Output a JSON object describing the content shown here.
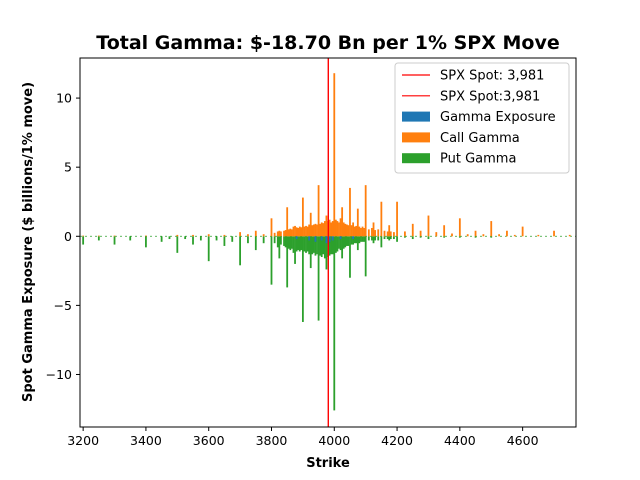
{
  "chart_data": {
    "type": "bar",
    "title": "Total Gamma: $-18.70 Bn per 1% SPX Move",
    "xlabel": "Strike",
    "ylabel": "Spot Gamma Exposure ($ billions/1% move)",
    "xlim": [
      3190,
      4770
    ],
    "ylim": [
      -13.8,
      12.9
    ],
    "xticks": [
      3200,
      3400,
      3600,
      3800,
      4000,
      4200,
      4400,
      4600
    ],
    "yticks": [
      -10,
      -5,
      0,
      5,
      10
    ],
    "spot_lines": [
      {
        "label": "SPX Spot: 3,981",
        "x": 3981,
        "color": "#ff0000"
      },
      {
        "label": "SPX Spot:3,981",
        "x": 3981,
        "color": "#ff0000"
      }
    ],
    "legend_position": "upper right",
    "series": [
      {
        "name": "Gamma Exposure",
        "color": "#1f77b4",
        "values": [
          [
            3880,
            -0.2
          ],
          [
            3920,
            -0.3
          ],
          [
            3940,
            -0.4
          ],
          [
            3960,
            -0.3
          ],
          [
            3975,
            -0.5
          ],
          [
            3985,
            -0.4
          ],
          [
            3995,
            -0.3
          ],
          [
            4020,
            -0.2
          ],
          [
            4060,
            -0.2
          ]
        ]
      },
      {
        "name": "Call Gamma",
        "color": "#ff7f0e",
        "values": [
          [
            3200,
            0.05
          ],
          [
            3250,
            0.05
          ],
          [
            3300,
            0.05
          ],
          [
            3400,
            0.05
          ],
          [
            3500,
            0.1
          ],
          [
            3550,
            0.1
          ],
          [
            3600,
            0.15
          ],
          [
            3650,
            0.1
          ],
          [
            3700,
            0.3
          ],
          [
            3725,
            0.15
          ],
          [
            3750,
            0.4
          ],
          [
            3775,
            0.15
          ],
          [
            3800,
            1.3
          ],
          [
            3810,
            0.25
          ],
          [
            3820,
            0.35
          ],
          [
            3825,
            0.4
          ],
          [
            3830,
            0.35
          ],
          [
            3840,
            0.4
          ],
          [
            3845,
            0.45
          ],
          [
            3850,
            2.1
          ],
          [
            3855,
            0.5
          ],
          [
            3860,
            0.55
          ],
          [
            3865,
            0.5
          ],
          [
            3870,
            0.7
          ],
          [
            3875,
            0.75
          ],
          [
            3880,
            0.65
          ],
          [
            3885,
            0.6
          ],
          [
            3890,
            0.7
          ],
          [
            3895,
            0.65
          ],
          [
            3900,
            2.8
          ],
          [
            3905,
            0.7
          ],
          [
            3910,
            0.75
          ],
          [
            3915,
            0.7
          ],
          [
            3920,
            0.85
          ],
          [
            3925,
            1.7
          ],
          [
            3930,
            0.8
          ],
          [
            3935,
            0.85
          ],
          [
            3940,
            0.9
          ],
          [
            3945,
            0.85
          ],
          [
            3950,
            3.7
          ],
          [
            3955,
            0.9
          ],
          [
            3960,
            1.0
          ],
          [
            3965,
            0.95
          ],
          [
            3970,
            1.1
          ],
          [
            3975,
            1.5
          ],
          [
            3980,
            1.1
          ],
          [
            3985,
            1.2
          ],
          [
            3990,
            1.0
          ],
          [
            3995,
            1.1
          ],
          [
            4000,
            11.8
          ],
          [
            4005,
            1.2
          ],
          [
            4010,
            1.1
          ],
          [
            4015,
            1.0
          ],
          [
            4020,
            1.3
          ],
          [
            4025,
            2.1
          ],
          [
            4030,
            1.0
          ],
          [
            4035,
            0.9
          ],
          [
            4040,
            0.85
          ],
          [
            4045,
            0.8
          ],
          [
            4050,
            3.5
          ],
          [
            4055,
            0.8
          ],
          [
            4060,
            1.0
          ],
          [
            4065,
            0.7
          ],
          [
            4070,
            0.75
          ],
          [
            4075,
            2.0
          ],
          [
            4080,
            0.7
          ],
          [
            4085,
            0.6
          ],
          [
            4090,
            0.7
          ],
          [
            4095,
            0.6
          ],
          [
            4100,
            3.7
          ],
          [
            4110,
            0.5
          ],
          [
            4120,
            0.6
          ],
          [
            4125,
            1.0
          ],
          [
            4130,
            0.45
          ],
          [
            4140,
            0.5
          ],
          [
            4150,
            2.5
          ],
          [
            4160,
            0.4
          ],
          [
            4170,
            0.35
          ],
          [
            4175,
            0.8
          ],
          [
            4180,
            0.35
          ],
          [
            4190,
            0.3
          ],
          [
            4200,
            2.5
          ],
          [
            4225,
            0.35
          ],
          [
            4250,
            0.9
          ],
          [
            4275,
            0.4
          ],
          [
            4300,
            1.5
          ],
          [
            4325,
            0.3
          ],
          [
            4350,
            0.8
          ],
          [
            4375,
            0.2
          ],
          [
            4400,
            1.3
          ],
          [
            4425,
            0.15
          ],
          [
            4450,
            0.4
          ],
          [
            4475,
            0.15
          ],
          [
            4500,
            1.1
          ],
          [
            4525,
            0.15
          ],
          [
            4550,
            0.4
          ],
          [
            4575,
            0.1
          ],
          [
            4600,
            0.7
          ],
          [
            4650,
            0.1
          ],
          [
            4700,
            0.4
          ],
          [
            4750,
            0.1
          ]
        ]
      },
      {
        "name": "Put Gamma",
        "color": "#2ca02c",
        "values": [
          [
            3200,
            -0.6
          ],
          [
            3250,
            -0.3
          ],
          [
            3300,
            -0.6
          ],
          [
            3350,
            -0.3
          ],
          [
            3400,
            -0.8
          ],
          [
            3450,
            -0.4
          ],
          [
            3475,
            -0.2
          ],
          [
            3500,
            -1.2
          ],
          [
            3525,
            -0.2
          ],
          [
            3550,
            -0.6
          ],
          [
            3575,
            -0.3
          ],
          [
            3600,
            -1.8
          ],
          [
            3625,
            -0.3
          ],
          [
            3650,
            -0.7
          ],
          [
            3675,
            -0.4
          ],
          [
            3700,
            -2.1
          ],
          [
            3725,
            -0.5
          ],
          [
            3750,
            -1.0
          ],
          [
            3775,
            -0.5
          ],
          [
            3800,
            -3.5
          ],
          [
            3810,
            -0.5
          ],
          [
            3820,
            -0.8
          ],
          [
            3825,
            -1.6
          ],
          [
            3830,
            -0.6
          ],
          [
            3840,
            -0.7
          ],
          [
            3845,
            -0.8
          ],
          [
            3850,
            -3.7
          ],
          [
            3855,
            -0.9
          ],
          [
            3860,
            -1.0
          ],
          [
            3865,
            -0.9
          ],
          [
            3870,
            -1.2
          ],
          [
            3875,
            -2.0
          ],
          [
            3880,
            -1.1
          ],
          [
            3885,
            -1.0
          ],
          [
            3890,
            -1.1
          ],
          [
            3895,
            -1.0
          ],
          [
            3900,
            -6.2
          ],
          [
            3905,
            -1.1
          ],
          [
            3910,
            -1.2
          ],
          [
            3915,
            -1.1
          ],
          [
            3920,
            -1.3
          ],
          [
            3925,
            -2.3
          ],
          [
            3930,
            -1.3
          ],
          [
            3935,
            -1.2
          ],
          [
            3940,
            -1.4
          ],
          [
            3945,
            -1.3
          ],
          [
            3950,
            -6.1
          ],
          [
            3955,
            -1.4
          ],
          [
            3960,
            -1.5
          ],
          [
            3965,
            -1.3
          ],
          [
            3970,
            -1.6
          ],
          [
            3975,
            -2.4
          ],
          [
            3980,
            -1.5
          ],
          [
            3985,
            -1.4
          ],
          [
            3990,
            -1.3
          ],
          [
            3995,
            -1.3
          ],
          [
            4000,
            -12.6
          ],
          [
            4005,
            -1.2
          ],
          [
            4010,
            -1.1
          ],
          [
            4015,
            -0.9
          ],
          [
            4020,
            -1.0
          ],
          [
            4025,
            -1.6
          ],
          [
            4030,
            -0.9
          ],
          [
            4035,
            -0.8
          ],
          [
            4040,
            -0.7
          ],
          [
            4045,
            -0.7
          ],
          [
            4050,
            -3.0
          ],
          [
            4055,
            -0.6
          ],
          [
            4060,
            -0.6
          ],
          [
            4065,
            -0.5
          ],
          [
            4070,
            -0.5
          ],
          [
            4075,
            -1.0
          ],
          [
            4080,
            -0.5
          ],
          [
            4085,
            -0.4
          ],
          [
            4090,
            -0.4
          ],
          [
            4095,
            -0.4
          ],
          [
            4100,
            -2.9
          ],
          [
            4110,
            -0.3
          ],
          [
            4120,
            -0.3
          ],
          [
            4125,
            -0.5
          ],
          [
            4130,
            -0.3
          ],
          [
            4140,
            -0.3
          ],
          [
            4150,
            -0.8
          ],
          [
            4160,
            -0.2
          ],
          [
            4170,
            -0.2
          ],
          [
            4175,
            -0.3
          ],
          [
            4180,
            -0.2
          ],
          [
            4190,
            -0.2
          ],
          [
            4200,
            -0.4
          ],
          [
            4225,
            -0.1
          ],
          [
            4250,
            -0.2
          ],
          [
            4275,
            -0.1
          ],
          [
            4300,
            -0.2
          ],
          [
            4350,
            -0.1
          ],
          [
            4400,
            -0.1
          ],
          [
            4450,
            -0.1
          ],
          [
            4500,
            -0.1
          ]
        ]
      }
    ]
  }
}
